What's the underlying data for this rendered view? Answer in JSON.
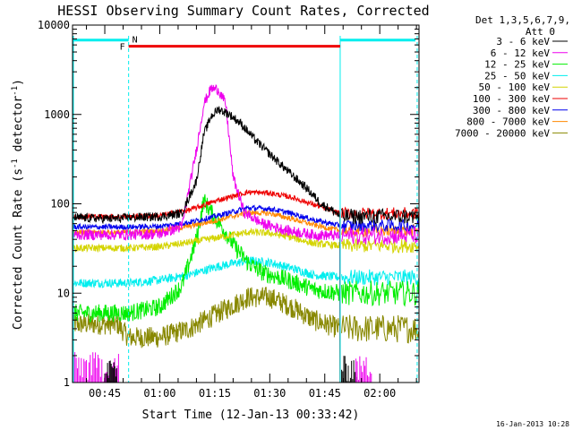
{
  "chart_data": {
    "type": "line",
    "title": "HESSI Observing Summary Count Rates, Corrected",
    "xlabel": "Start Time (12-Jan-13 00:33:42)",
    "ylabel_main": "Corrected Count Rate (s",
    "ylabel_sup": "-1",
    "ylabel_tail": " detector",
    "ylabel_end": ")",
    "yscale": "log",
    "ylim": [
      1,
      10000
    ],
    "xlim_min": [
      36.2,
      130.7
    ],
    "y_ticks": [
      {
        "v": 1,
        "label": "1"
      },
      {
        "v": 10,
        "label": "10"
      },
      {
        "v": 100,
        "label": "100"
      },
      {
        "v": 1000,
        "label": "1000"
      },
      {
        "v": 10000,
        "label": "10000"
      }
    ],
    "x_ticks": [
      {
        "m": 45,
        "label": "00:45"
      },
      {
        "m": 60,
        "label": "01:00"
      },
      {
        "m": 75,
        "label": "01:15"
      },
      {
        "m": 90,
        "label": "01:30"
      },
      {
        "m": 105,
        "label": "01:45"
      },
      {
        "m": 120,
        "label": "02:00"
      }
    ],
    "legend_placement": "right",
    "legend_header": [
      "Det 1,3,5,6,7,9,",
      "Att 0"
    ],
    "series": [
      {
        "name": "3 - 6 keV",
        "color": "#000000",
        "points": [
          [
            36.2,
            70
          ],
          [
            48.4,
            68
          ],
          [
            51.5,
            70
          ],
          [
            60,
            72
          ],
          [
            66,
            78
          ],
          [
            70,
            180
          ],
          [
            72,
            600
          ],
          [
            74,
            950
          ],
          [
            76,
            1150
          ],
          [
            79,
            1000
          ],
          [
            82,
            800
          ],
          [
            86,
            520
          ],
          [
            90,
            360
          ],
          [
            95,
            230
          ],
          [
            100,
            150
          ],
          [
            104,
            100
          ],
          [
            108,
            80
          ],
          [
            109.2,
            72
          ]
        ]
      },
      {
        "name": "6 - 12 keV",
        "color": "#ee00ee",
        "points": [
          [
            36.2,
            45
          ],
          [
            48.4,
            45
          ],
          [
            51.5,
            45
          ],
          [
            60,
            46
          ],
          [
            66,
            55
          ],
          [
            70,
            400
          ],
          [
            72,
            1300
          ],
          [
            74,
            1950
          ],
          [
            76,
            1900
          ],
          [
            78,
            1300
          ],
          [
            80,
            200
          ],
          [
            83,
            80
          ],
          [
            88,
            60
          ],
          [
            95,
            50
          ],
          [
            102,
            45
          ],
          [
            109.2,
            44
          ]
        ]
      },
      {
        "name": "12 - 25 keV",
        "color": "#00ee00",
        "points": [
          [
            36.2,
            6
          ],
          [
            48.4,
            6
          ],
          [
            51.5,
            6
          ],
          [
            60,
            7
          ],
          [
            66,
            12
          ],
          [
            70,
            40
          ],
          [
            72,
            110
          ],
          [
            74,
            80
          ],
          [
            77,
            55
          ],
          [
            80,
            35
          ],
          [
            84,
            22
          ],
          [
            88,
            17
          ],
          [
            95,
            14
          ],
          [
            102,
            11
          ],
          [
            109.2,
            10
          ]
        ]
      },
      {
        "name": "25 - 50 keV",
        "color": "#00eeee",
        "points": [
          [
            36.2,
            13
          ],
          [
            48.4,
            13
          ],
          [
            51.5,
            13
          ],
          [
            60,
            14
          ],
          [
            68,
            16
          ],
          [
            76,
            20
          ],
          [
            84,
            23
          ],
          [
            90,
            22
          ],
          [
            96,
            19
          ],
          [
            102,
            16
          ],
          [
            109.2,
            15
          ]
        ]
      },
      {
        "name": "50 - 100 keV",
        "color": "#d4d400",
        "points": [
          [
            36.2,
            32
          ],
          [
            48.4,
            32
          ],
          [
            51.5,
            32
          ],
          [
            60,
            33
          ],
          [
            68,
            37
          ],
          [
            76,
            42
          ],
          [
            84,
            48
          ],
          [
            90,
            47
          ],
          [
            96,
            42
          ],
          [
            102,
            36
          ],
          [
            109.2,
            34
          ]
        ]
      },
      {
        "name": "100 - 300 keV",
        "color": "#ee0000",
        "points": [
          [
            36.2,
            72
          ],
          [
            48.4,
            72
          ],
          [
            51.5,
            72
          ],
          [
            60,
            74
          ],
          [
            68,
            85
          ],
          [
            76,
            110
          ],
          [
            84,
            135
          ],
          [
            90,
            132
          ],
          [
            96,
            118
          ],
          [
            102,
            98
          ],
          [
            109.2,
            78
          ]
        ]
      },
      {
        "name": "300 - 800 keV",
        "color": "#0000ee",
        "points": [
          [
            36.2,
            55
          ],
          [
            48.4,
            55
          ],
          [
            51.5,
            55
          ],
          [
            60,
            56
          ],
          [
            68,
            62
          ],
          [
            76,
            74
          ],
          [
            84,
            90
          ],
          [
            90,
            88
          ],
          [
            96,
            78
          ],
          [
            102,
            66
          ],
          [
            109.2,
            57
          ]
        ]
      },
      {
        "name": "800 - 7000 keV",
        "color": "#ff8800",
        "points": [
          [
            36.2,
            48
          ],
          [
            48.4,
            48
          ],
          [
            51.5,
            48
          ],
          [
            60,
            50
          ],
          [
            68,
            56
          ],
          [
            76,
            66
          ],
          [
            84,
            80
          ],
          [
            90,
            78
          ],
          [
            96,
            68
          ],
          [
            102,
            58
          ],
          [
            109.2,
            50
          ]
        ]
      },
      {
        "name": "7000 - 20000 keV",
        "color": "#888800",
        "points": [
          [
            36.2,
            4.5
          ],
          [
            48.4,
            4.5
          ],
          [
            51.5,
            3.2
          ],
          [
            60,
            3.2
          ],
          [
            68,
            4
          ],
          [
            76,
            6
          ],
          [
            84,
            9
          ],
          [
            90,
            9
          ],
          [
            96,
            7
          ],
          [
            102,
            5
          ],
          [
            109.2,
            4
          ]
        ]
      }
    ],
    "flags": [
      {
        "label": "F",
        "color": "#ee0000",
        "start": 51.5,
        "end": 109.2,
        "level": 5800
      },
      {
        "label": "N",
        "color": "#00eeee",
        "start": 51.5,
        "end": 109.2,
        "level": 6800
      }
    ],
    "att_state_line": {
      "color": "#00eeee",
      "level": 6800
    },
    "night_intervals": [
      [
        36.2,
        51.5
      ],
      [
        109.2,
        130.7
      ]
    ]
  },
  "footer": {
    "timestamp": "16-Jan-2013 10:28"
  }
}
